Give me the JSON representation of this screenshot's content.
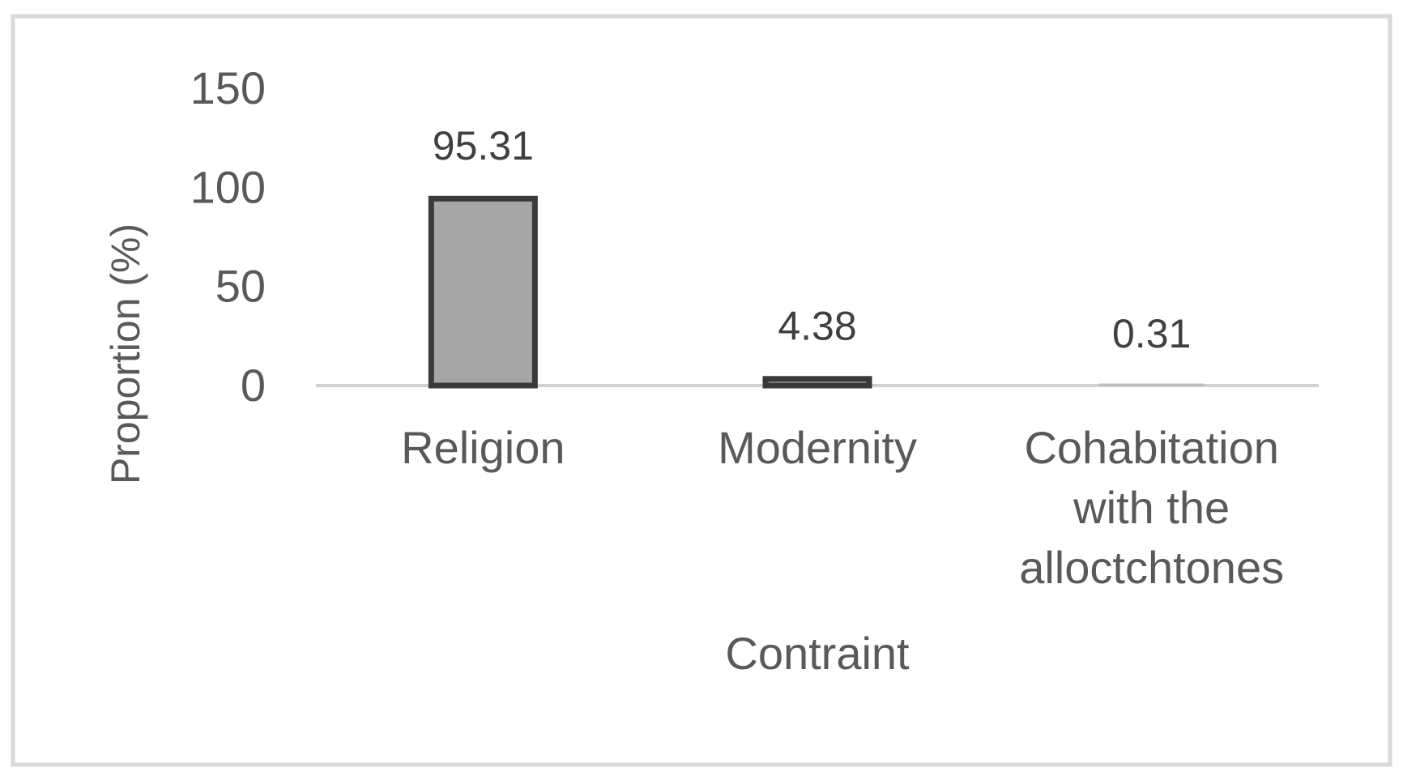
{
  "chart_data": {
    "type": "bar",
    "title": "",
    "xlabel": "Contraint",
    "ylabel": "Proportion (%)",
    "ylim": [
      0,
      150
    ],
    "yticks": [
      0,
      50,
      100,
      150
    ],
    "grid": false,
    "legend": "none",
    "categories": [
      [
        "Religion"
      ],
      [
        "Modernity"
      ],
      [
        "Cohabitation",
        "with the",
        "alloctchtones"
      ]
    ],
    "values": [
      95.31,
      4.38,
      0.31
    ],
    "data_labels": [
      "95.31",
      "4.38",
      "0.31"
    ],
    "colors": {
      "bar_fill": "#a6a6a6",
      "bar_stroke": "#3a3a3a",
      "axis_line": "#d0d0d0",
      "text": "#595959",
      "label_text": "#404040",
      "frame": "#d9d9d9"
    }
  }
}
